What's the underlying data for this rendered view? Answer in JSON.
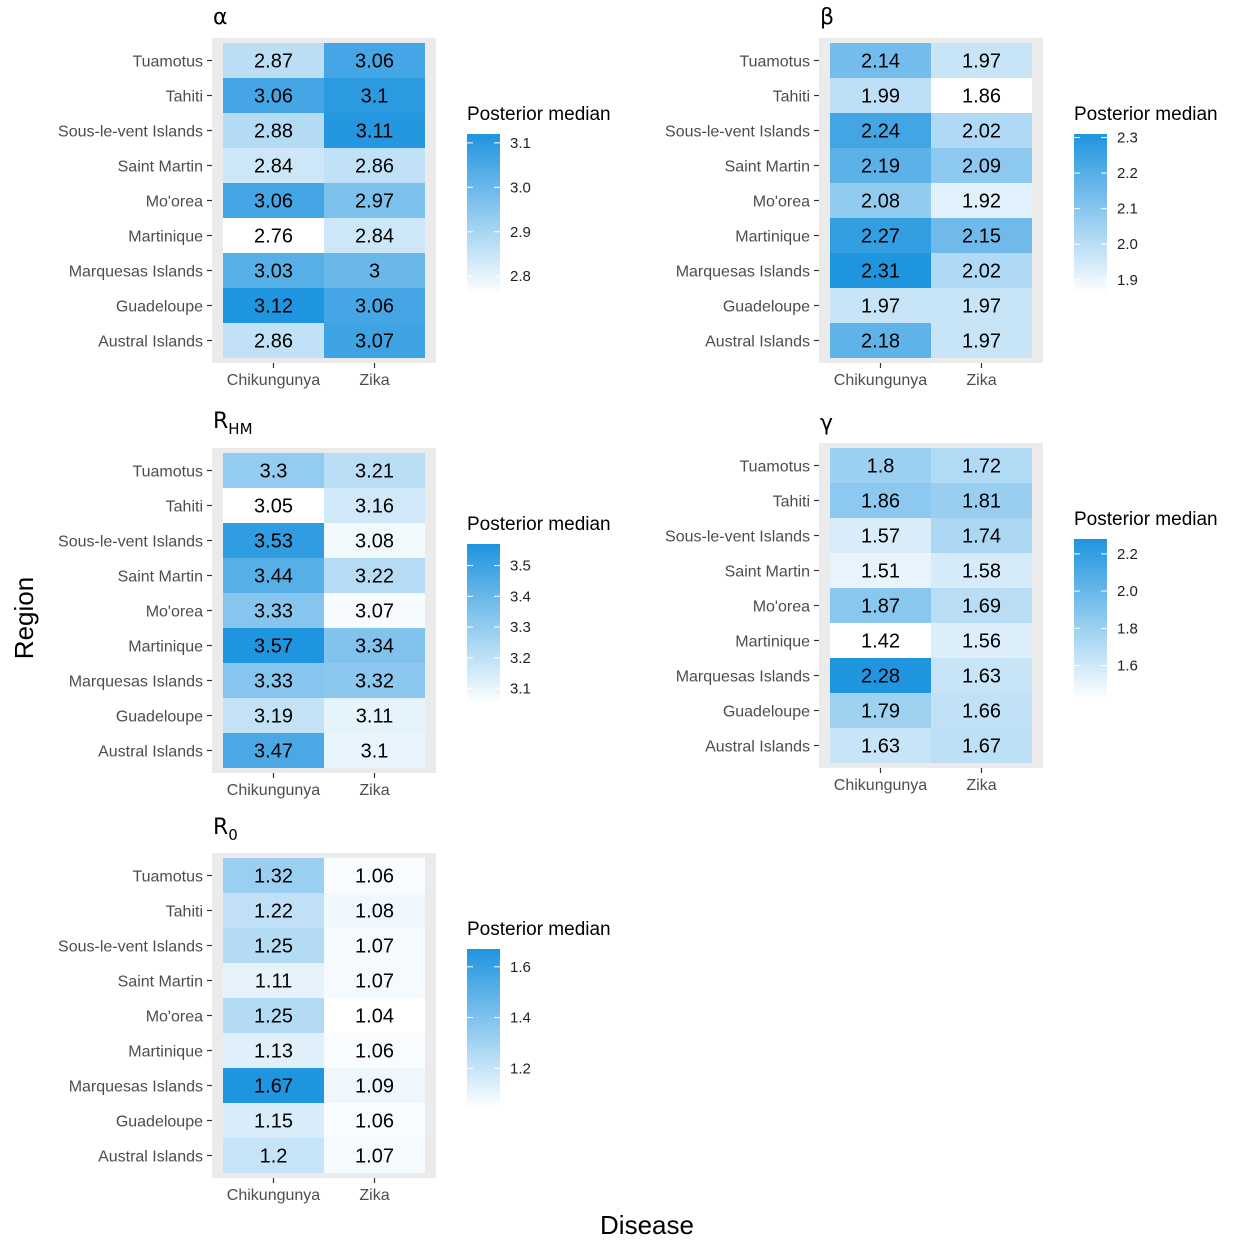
{
  "figure": {
    "y_axis_title": "Region",
    "x_axis_title": "Disease"
  },
  "colors": {
    "low": "#ffffff",
    "high": "#1f94df",
    "panel_background": "#ebebeb",
    "tick_color": "#333333",
    "text_color": "#000000"
  },
  "chart_data": [
    {
      "type": "heatmap",
      "id": "alpha",
      "title": "α",
      "title_sub": "",
      "legend_title": "Posterior median",
      "legend_ticks": [
        "3.1",
        "3.0",
        "2.9",
        "2.8"
      ],
      "legend_values": [
        3.1,
        3.0,
        2.9,
        2.8
      ],
      "scale_range": [
        2.76,
        3.12
      ],
      "x_categories": [
        "Chikungunya",
        "Zika"
      ],
      "y_categories": [
        "Tuamotus",
        "Tahiti",
        "Sous-le-vent Islands",
        "Saint Martin",
        "Mo'orea",
        "Martinique",
        "Marquesas Islands",
        "Guadeloupe",
        "Austral Islands"
      ],
      "values": [
        [
          2.87,
          3.06
        ],
        [
          3.06,
          3.1
        ],
        [
          2.88,
          3.11
        ],
        [
          2.84,
          2.86
        ],
        [
          3.06,
          2.97
        ],
        [
          2.76,
          2.84
        ],
        [
          3.03,
          3
        ],
        [
          3.12,
          3.06
        ],
        [
          2.86,
          3.07
        ]
      ],
      "labels": [
        [
          "2.87",
          "3.06"
        ],
        [
          "3.06",
          "3.1"
        ],
        [
          "2.88",
          "3.11"
        ],
        [
          "2.84",
          "2.86"
        ],
        [
          "3.06",
          "2.97"
        ],
        [
          "2.76",
          "2.84"
        ],
        [
          "3.03",
          "3"
        ],
        [
          "3.12",
          "3.06"
        ],
        [
          "2.86",
          "3.07"
        ]
      ]
    },
    {
      "type": "heatmap",
      "id": "beta",
      "title": "β",
      "title_sub": "",
      "legend_title": "Posterior median",
      "legend_ticks": [
        "2.3",
        "2.2",
        "2.1",
        "2.0",
        "1.9"
      ],
      "legend_values": [
        2.3,
        2.2,
        2.1,
        2.0,
        1.9
      ],
      "scale_range": [
        1.86,
        2.31
      ],
      "x_categories": [
        "Chikungunya",
        "Zika"
      ],
      "y_categories": [
        "Tuamotus",
        "Tahiti",
        "Sous-le-vent Islands",
        "Saint Martin",
        "Mo'orea",
        "Martinique",
        "Marquesas Islands",
        "Guadeloupe",
        "Austral Islands"
      ],
      "values": [
        [
          2.14,
          1.97
        ],
        [
          1.99,
          1.86
        ],
        [
          2.24,
          2.02
        ],
        [
          2.19,
          2.09
        ],
        [
          2.08,
          1.92
        ],
        [
          2.27,
          2.15
        ],
        [
          2.31,
          2.02
        ],
        [
          1.97,
          1.97
        ],
        [
          2.18,
          1.97
        ]
      ],
      "labels": [
        [
          "2.14",
          "1.97"
        ],
        [
          "1.99",
          "1.86"
        ],
        [
          "2.24",
          "2.02"
        ],
        [
          "2.19",
          "2.09"
        ],
        [
          "2.08",
          "1.92"
        ],
        [
          "2.27",
          "2.15"
        ],
        [
          "2.31",
          "2.02"
        ],
        [
          "1.97",
          "1.97"
        ],
        [
          "2.18",
          "1.97"
        ]
      ]
    },
    {
      "type": "heatmap",
      "id": "rhm",
      "title": "R",
      "title_sub": "HM",
      "legend_title": "Posterior median",
      "legend_ticks": [
        "3.5",
        "3.4",
        "3.3",
        "3.2",
        "3.1"
      ],
      "legend_values": [
        3.5,
        3.4,
        3.3,
        3.2,
        3.1
      ],
      "scale_range": [
        3.05,
        3.57
      ],
      "x_categories": [
        "Chikungunya",
        "Zika"
      ],
      "y_categories": [
        "Tuamotus",
        "Tahiti",
        "Sous-le-vent Islands",
        "Saint Martin",
        "Mo'orea",
        "Martinique",
        "Marquesas Islands",
        "Guadeloupe",
        "Austral Islands"
      ],
      "values": [
        [
          3.3,
          3.21
        ],
        [
          3.05,
          3.16
        ],
        [
          3.53,
          3.08
        ],
        [
          3.44,
          3.22
        ],
        [
          3.33,
          3.07
        ],
        [
          3.57,
          3.34
        ],
        [
          3.33,
          3.32
        ],
        [
          3.19,
          3.11
        ],
        [
          3.47,
          3.1
        ]
      ],
      "labels": [
        [
          "3.3",
          "3.21"
        ],
        [
          "3.05",
          "3.16"
        ],
        [
          "3.53",
          "3.08"
        ],
        [
          "3.44",
          "3.22"
        ],
        [
          "3.33",
          "3.07"
        ],
        [
          "3.57",
          "3.34"
        ],
        [
          "3.33",
          "3.32"
        ],
        [
          "3.19",
          "3.11"
        ],
        [
          "3.47",
          "3.1"
        ]
      ]
    },
    {
      "type": "heatmap",
      "id": "gamma",
      "title": "γ",
      "title_sub": "",
      "legend_title": "Posterior median",
      "legend_ticks": [
        "2.2",
        "2.0",
        "1.8",
        "1.6"
      ],
      "legend_values": [
        2.2,
        2.0,
        1.8,
        1.6
      ],
      "scale_range": [
        1.42,
        2.28
      ],
      "x_categories": [
        "Chikungunya",
        "Zika"
      ],
      "y_categories": [
        "Tuamotus",
        "Tahiti",
        "Sous-le-vent Islands",
        "Saint Martin",
        "Mo'orea",
        "Martinique",
        "Marquesas Islands",
        "Guadeloupe",
        "Austral Islands"
      ],
      "values": [
        [
          1.8,
          1.72
        ],
        [
          1.86,
          1.81
        ],
        [
          1.57,
          1.74
        ],
        [
          1.51,
          1.58
        ],
        [
          1.87,
          1.69
        ],
        [
          1.42,
          1.56
        ],
        [
          2.28,
          1.63
        ],
        [
          1.79,
          1.66
        ],
        [
          1.63,
          1.67
        ]
      ],
      "labels": [
        [
          "1.8",
          "1.72"
        ],
        [
          "1.86",
          "1.81"
        ],
        [
          "1.57",
          "1.74"
        ],
        [
          "1.51",
          "1.58"
        ],
        [
          "1.87",
          "1.69"
        ],
        [
          "1.42",
          "1.56"
        ],
        [
          "2.28",
          "1.63"
        ],
        [
          "1.79",
          "1.66"
        ],
        [
          "1.63",
          "1.67"
        ]
      ]
    },
    {
      "type": "heatmap",
      "id": "r0",
      "title": "R",
      "title_sub": "0",
      "legend_title": "Posterior median",
      "legend_ticks": [
        "1.6",
        "1.4",
        "1.2"
      ],
      "legend_values": [
        1.6,
        1.4,
        1.2
      ],
      "scale_range": [
        1.04,
        1.67
      ],
      "x_categories": [
        "Chikungunya",
        "Zika"
      ],
      "y_categories": [
        "Tuamotus",
        "Tahiti",
        "Sous-le-vent Islands",
        "Saint Martin",
        "Mo'orea",
        "Martinique",
        "Marquesas Islands",
        "Guadeloupe",
        "Austral Islands"
      ],
      "values": [
        [
          1.32,
          1.06
        ],
        [
          1.22,
          1.08
        ],
        [
          1.25,
          1.07
        ],
        [
          1.11,
          1.07
        ],
        [
          1.25,
          1.04
        ],
        [
          1.13,
          1.06
        ],
        [
          1.67,
          1.09
        ],
        [
          1.15,
          1.06
        ],
        [
          1.2,
          1.07
        ]
      ],
      "labels": [
        [
          "1.32",
          "1.06"
        ],
        [
          "1.22",
          "1.08"
        ],
        [
          "1.25",
          "1.07"
        ],
        [
          "1.11",
          "1.07"
        ],
        [
          "1.25",
          "1.04"
        ],
        [
          "1.13",
          "1.06"
        ],
        [
          "1.67",
          "1.09"
        ],
        [
          "1.15",
          "1.06"
        ],
        [
          "1.2",
          "1.07"
        ]
      ]
    }
  ]
}
